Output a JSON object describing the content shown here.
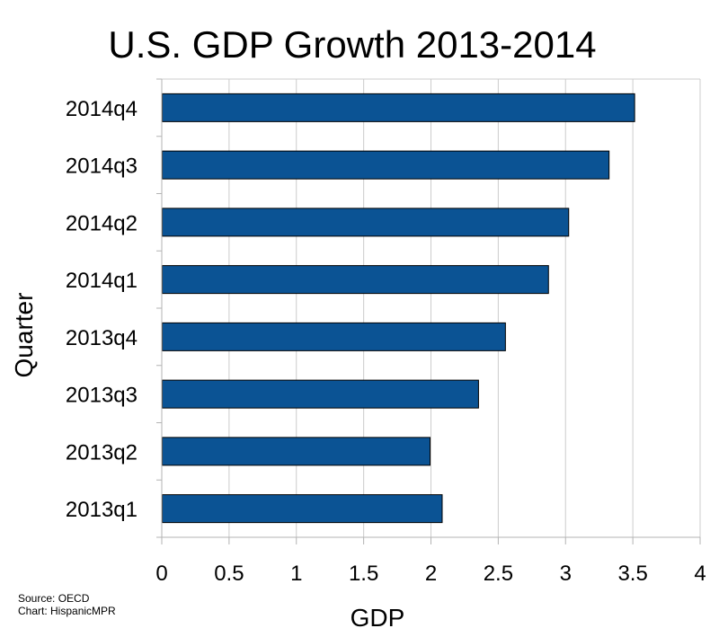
{
  "chart_data": {
    "type": "bar",
    "orientation": "horizontal",
    "title": "U.S. GDP Growth 2013-2014",
    "xlabel": "GDP",
    "ylabel": "Quarter",
    "categories": [
      "2013q1",
      "2013q2",
      "2013q3",
      "2013q4",
      "2014q1",
      "2014q2",
      "2014q3",
      "2014q4"
    ],
    "values": [
      2.08,
      1.99,
      2.35,
      2.55,
      2.87,
      3.02,
      3.32,
      3.51
    ],
    "xlim": [
      0,
      4
    ],
    "xticks": [
      "0",
      "0.5",
      "1",
      "1.5",
      "2",
      "2.5",
      "3",
      "3.5",
      "4"
    ],
    "grid": true,
    "bar_color": "#0b5394",
    "source_line1": "Source: OECD",
    "source_line2": "Chart: HispanicMPR"
  }
}
